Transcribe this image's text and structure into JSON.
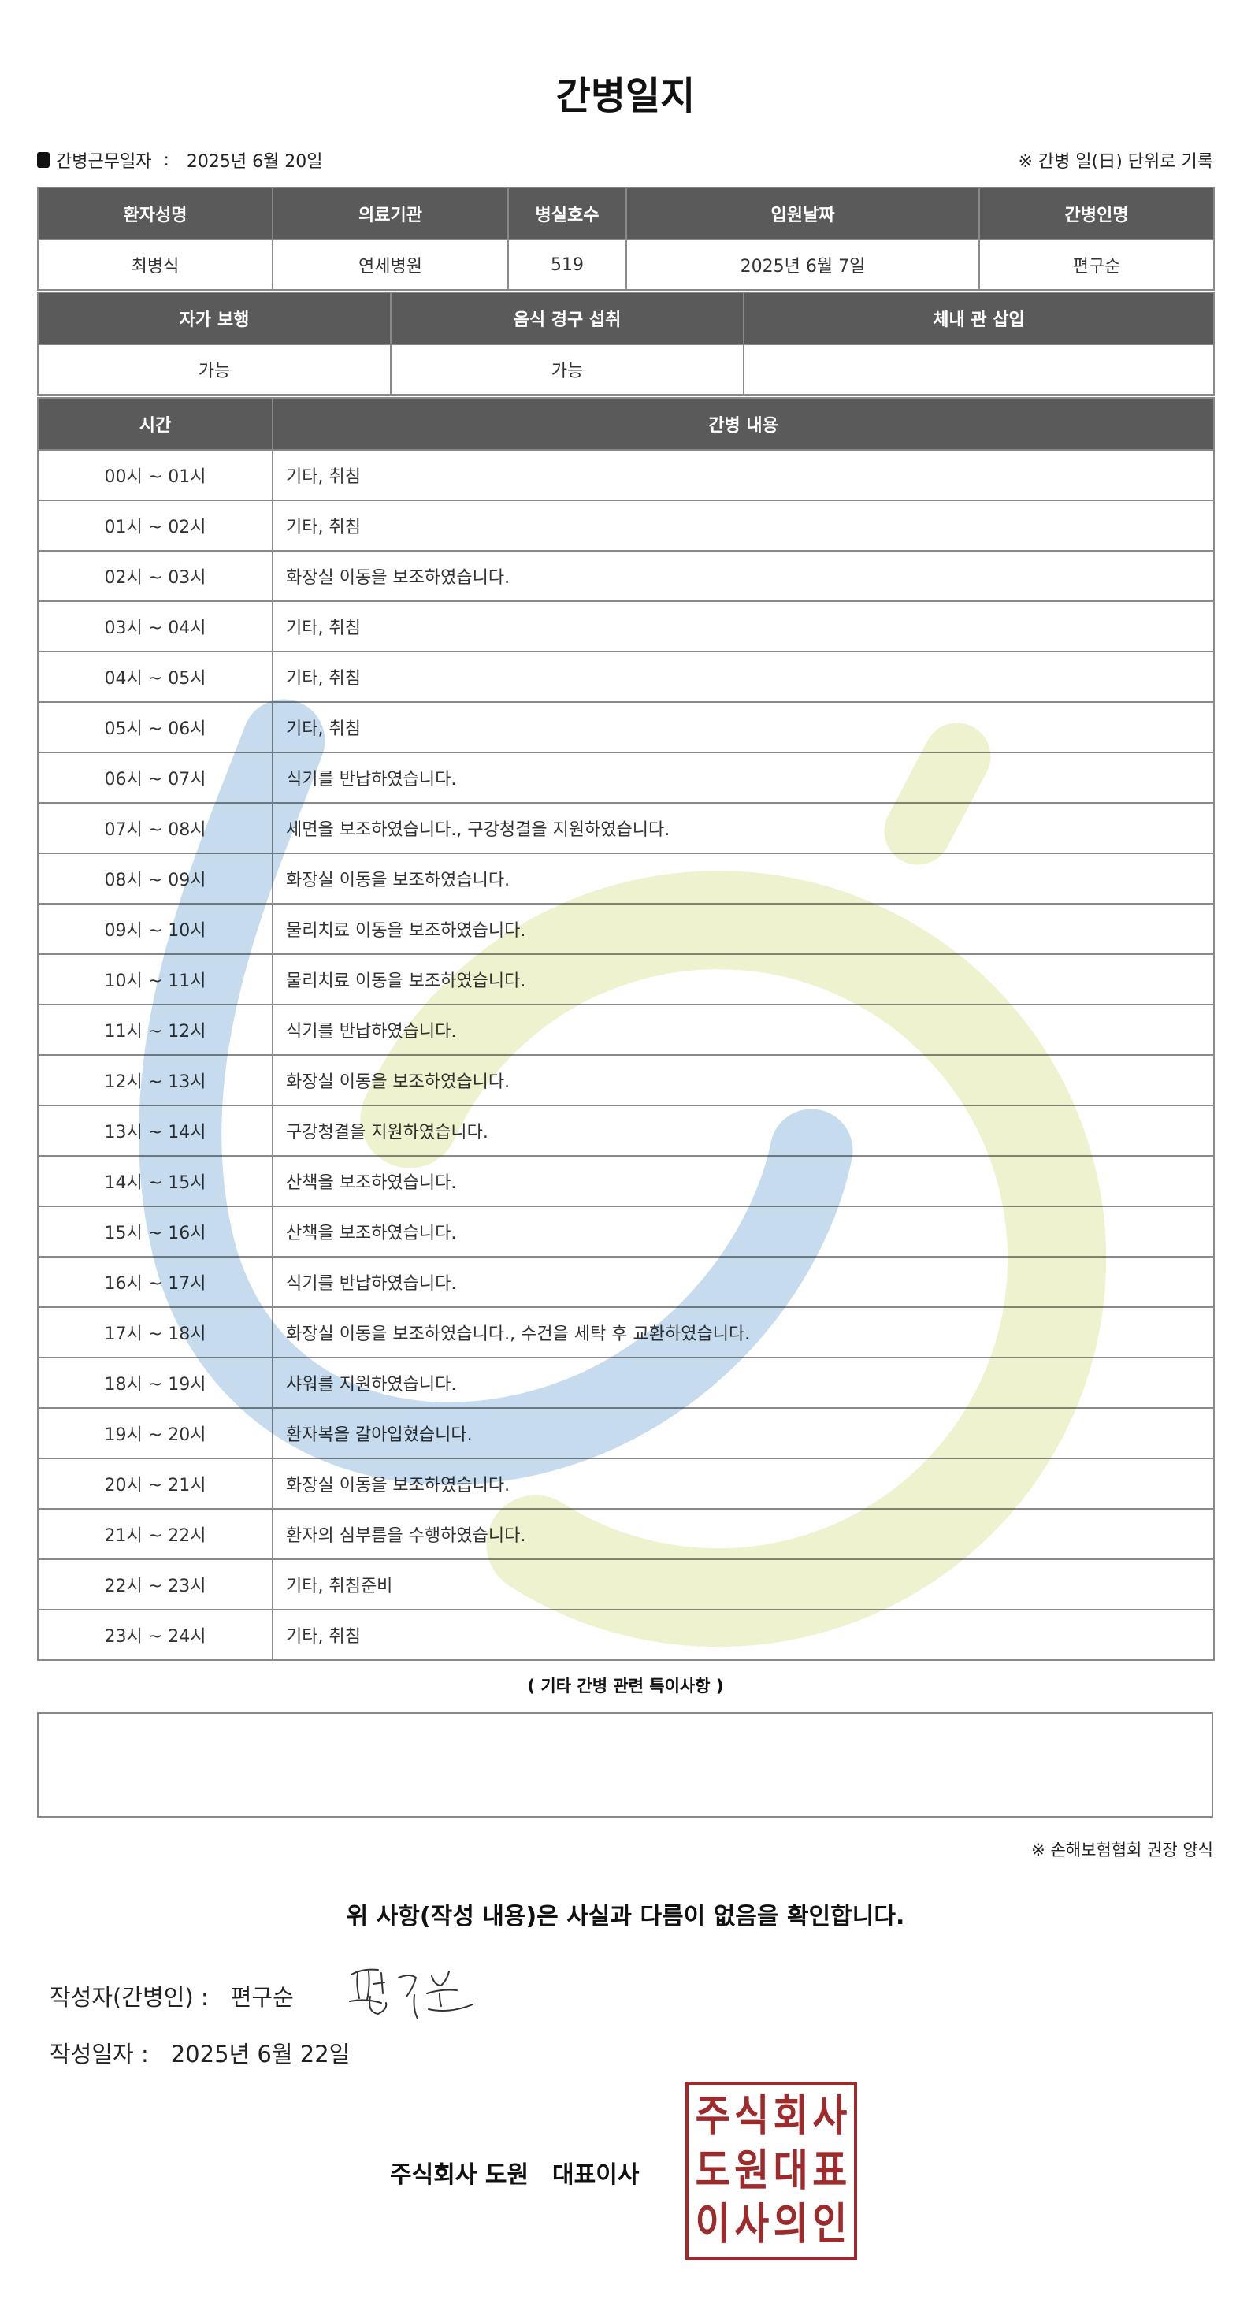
{
  "title": "간병일지",
  "info": {
    "work_date_label": "간병근무일자",
    "work_date": "2025년 6월 20일",
    "note": "※ 간병 일(日) 단위로 기록"
  },
  "patient_table": {
    "headers": [
      "환자성명",
      "의료기관",
      "병실호수",
      "입원날짜",
      "간병인명"
    ],
    "values": [
      "최병식",
      "연세병원",
      "519",
      "2025년 6월 7일",
      "편구순"
    ]
  },
  "status_table": {
    "headers": [
      "자가 보행",
      "음식 경구 섭취",
      "체내 관 삽입"
    ],
    "values": [
      "가능",
      "가능",
      ""
    ]
  },
  "log_table": {
    "headers": [
      "시간",
      "간병 내용"
    ],
    "rows": [
      {
        "time": "00시 ~ 01시",
        "content": "기타, 취침"
      },
      {
        "time": "01시 ~ 02시",
        "content": "기타, 취침"
      },
      {
        "time": "02시 ~ 03시",
        "content": "화장실 이동을 보조하였습니다."
      },
      {
        "time": "03시 ~ 04시",
        "content": "기타, 취침"
      },
      {
        "time": "04시 ~ 05시",
        "content": "기타, 취침"
      },
      {
        "time": "05시 ~ 06시",
        "content": "기타, 취침"
      },
      {
        "time": "06시 ~ 07시",
        "content": "식기를 반납하였습니다."
      },
      {
        "time": "07시 ~ 08시",
        "content": "세면을 보조하였습니다., 구강청결을 지원하였습니다."
      },
      {
        "time": "08시 ~ 09시",
        "content": "화장실 이동을 보조하였습니다."
      },
      {
        "time": "09시 ~ 10시",
        "content": "물리치료 이동을 보조하였습니다."
      },
      {
        "time": "10시 ~ 11시",
        "content": "물리치료 이동을 보조하였습니다."
      },
      {
        "time": "11시 ~ 12시",
        "content": "식기를 반납하였습니다."
      },
      {
        "time": "12시 ~ 13시",
        "content": "화장실 이동을 보조하였습니다."
      },
      {
        "time": "13시 ~ 14시",
        "content": "구강청결을 지원하였습니다."
      },
      {
        "time": "14시 ~ 15시",
        "content": "산책을 보조하였습니다."
      },
      {
        "time": "15시 ~ 16시",
        "content": "산책을 보조하였습니다."
      },
      {
        "time": "16시 ~ 17시",
        "content": "식기를 반납하였습니다."
      },
      {
        "time": "17시 ~ 18시",
        "content": "화장실 이동을 보조하였습니다., 수건을 세탁 후 교환하였습니다."
      },
      {
        "time": "18시 ~ 19시",
        "content": "샤워를 지원하였습니다."
      },
      {
        "time": "19시 ~ 20시",
        "content": "환자복을 갈아입혔습니다."
      },
      {
        "time": "20시 ~ 21시",
        "content": "화장실 이동을 보조하였습니다."
      },
      {
        "time": "21시 ~ 22시",
        "content": "환자의 심부름을 수행하였습니다."
      },
      {
        "time": "22시 ~ 23시",
        "content": "기타, 취침준비"
      },
      {
        "time": "23시 ~ 24시",
        "content": "기타, 취침"
      }
    ]
  },
  "notes": {
    "label": "( 기타 간병 관련 특이사항 )",
    "value": ""
  },
  "footnote": "※ 손해보험협회 권장 양식",
  "confirmation": "위 사항(작성 내용)은 사실과 다름이 없음을 확인합니다.",
  "writer": {
    "label": "작성자(간병인) :",
    "name": "편구순",
    "signature_text": "편구순"
  },
  "written_date": {
    "label": "작성일자 :",
    "value": "2025년 6월 22일"
  },
  "company": {
    "name": "주식회사 도원",
    "role": "대표이사"
  },
  "stamp": {
    "text": [
      "주",
      "식",
      "회",
      "사",
      "도",
      "원",
      "대",
      "표",
      "이",
      "사",
      "의",
      "인"
    ],
    "color": "#9e2a2b"
  },
  "colors": {
    "header_bg": "#5a5a5a",
    "watermark_blue": "#c6dcee",
    "watermark_green": "#eef2cf"
  }
}
